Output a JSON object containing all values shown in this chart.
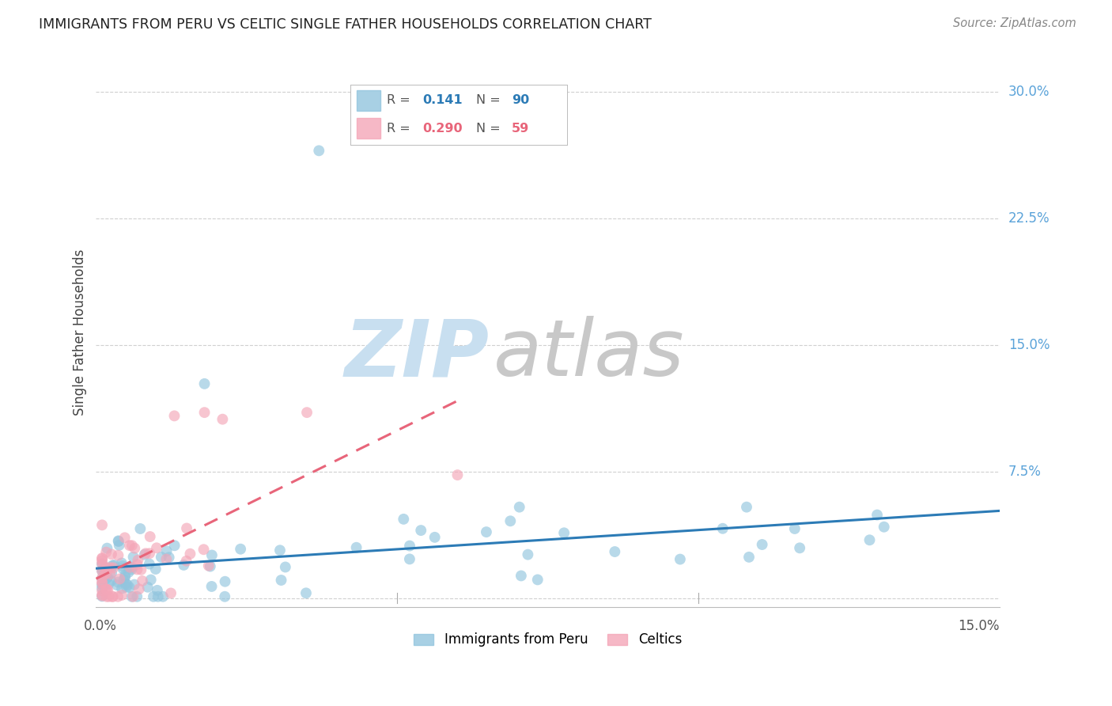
{
  "title": "IMMIGRANTS FROM PERU VS CELTIC SINGLE FATHER HOUSEHOLDS CORRELATION CHART",
  "source": "Source: ZipAtlas.com",
  "ylabel": "Single Father Households",
  "xlim": [
    0.0,
    0.15
  ],
  "ylim": [
    -0.005,
    0.32
  ],
  "legend_R1": "0.141",
  "legend_N1": "90",
  "legend_R2": "0.290",
  "legend_N2": "59",
  "color_blue": "#92c5de",
  "color_pink": "#f4a6b8",
  "color_blue_dark": "#2c7bb6",
  "color_pink_dark": "#e8657a",
  "color_right_axis": "#5ba3d9",
  "watermark_zip": "ZIP",
  "watermark_atlas": "atlas",
  "watermark_color_zip": "#c8dff0",
  "watermark_color_atlas": "#c8c8c8",
  "ytick_vals": [
    0.0,
    0.075,
    0.15,
    0.225,
    0.3
  ],
  "ytick_labels": [
    "",
    "7.5%",
    "15.0%",
    "22.5%",
    "30.0%"
  ],
  "xtick_vals": [
    0.0,
    0.15
  ],
  "xtick_labels": [
    "0.0%",
    "15.0%"
  ]
}
